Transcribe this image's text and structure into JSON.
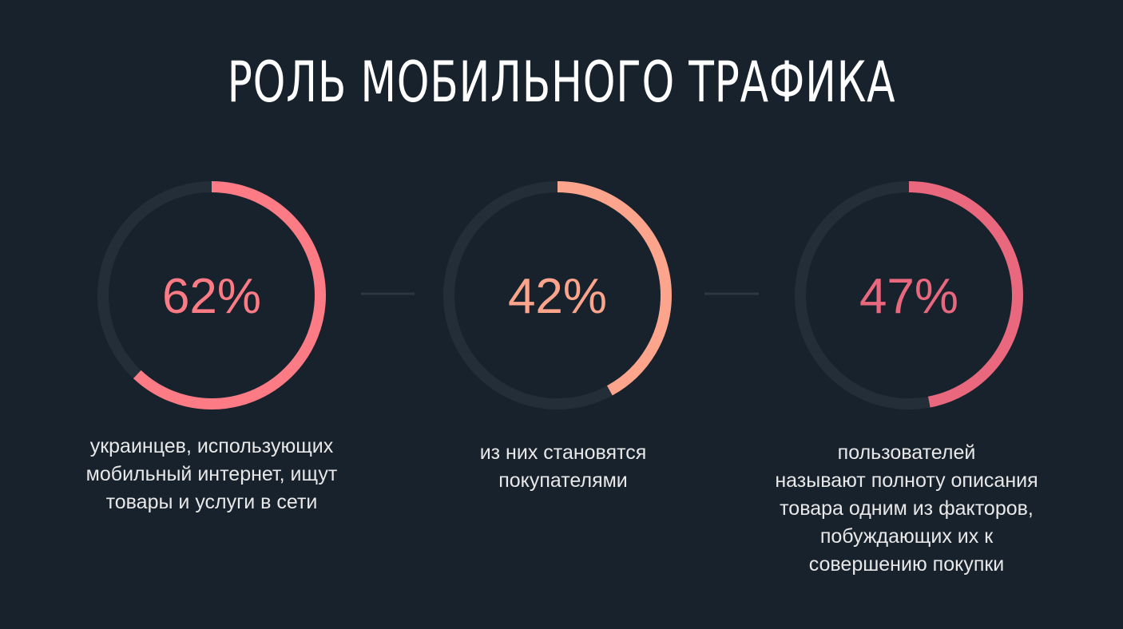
{
  "title": "РОЛЬ МОБИЛЬНОГО ТРАФИКА",
  "colors": {
    "background": "#18222d",
    "track": "#242e38",
    "connector": "#2c3742"
  },
  "chart_data": {
    "type": "pie",
    "series": [
      {
        "label": "62%",
        "value": 62,
        "color": "#fc7b84",
        "description": [
          "украинцев, использующих",
          "мобильный интернет, ищут",
          "товары и услуги в сети"
        ]
      },
      {
        "label": "42%",
        "value": 42,
        "color": "#fca48c",
        "description": [
          "из них становятся",
          "покупателями"
        ]
      },
      {
        "label": "47%",
        "value": 47,
        "color": "#e9687e",
        "description": [
          "пользователей",
          "называют полноту описания",
          "товара одним из факторов,",
          "побуждающих их к",
          "совершению покупки"
        ]
      }
    ]
  }
}
